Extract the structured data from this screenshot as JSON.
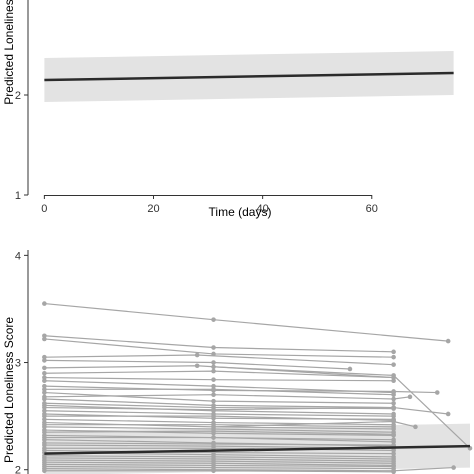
{
  "chart_data": [
    {
      "type": "line",
      "title": "",
      "xlabel": "Time (days)",
      "ylabel": "Predicted Loneliness",
      "xlim": [
        -3,
        78
      ],
      "ylim": [
        1,
        2.95
      ],
      "x_ticks": [
        0,
        20,
        40,
        60
      ],
      "x_tick_labels": [
        "0",
        "20",
        "40",
        "60"
      ],
      "y_ticks": [
        1,
        2
      ],
      "y_tick_labels": [
        "1",
        "2"
      ],
      "grid": false,
      "legend": "none",
      "colors": {
        "line": "#2b2b2b",
        "ribbon": "#e3e3e3",
        "axis": "#333333"
      },
      "series": [
        {
          "x": [
            0,
            75
          ],
          "y": [
            2.15,
            2.22
          ],
          "ci_lower": [
            1.93,
            2.0
          ],
          "ci_upper": [
            2.37,
            2.44
          ]
        }
      ]
    },
    {
      "type": "line",
      "title": "",
      "xlabel": "",
      "ylabel": "Predicted Loneliness Score",
      "xlim": [
        -3,
        78
      ],
      "ylim": [
        1.96,
        4.05
      ],
      "y_ticks": [
        2,
        3,
        4
      ],
      "y_tick_labels": [
        "2",
        "3",
        "4"
      ],
      "grid": false,
      "legend": "none",
      "colors": {
        "trajectory": "#a6a6a6",
        "line": "#2b2b2b",
        "ribbon": "#e3e3e3",
        "axis": "#333333"
      },
      "fit": {
        "x": [
          0,
          78
        ],
        "y": [
          2.15,
          2.22
        ],
        "ci_lower": [
          1.95,
          2.02
        ],
        "ci_upper": [
          2.36,
          2.43
        ]
      },
      "trajectories": [
        {
          "x": [
            0,
            31,
            74
          ],
          "y": [
            3.55,
            3.4,
            3.2
          ]
        },
        {
          "x": [
            0,
            31,
            64
          ],
          "y": [
            3.25,
            3.14,
            3.1
          ]
        },
        {
          "x": [
            0,
            31,
            64
          ],
          "y": [
            3.22,
            3.08,
            3.05
          ]
        },
        {
          "x": [
            0,
            28,
            64
          ],
          "y": [
            3.05,
            3.07,
            2.98
          ]
        },
        {
          "x": [
            0,
            31,
            56
          ],
          "y": [
            3.02,
            3.0,
            2.94
          ]
        },
        {
          "x": [
            0,
            28,
            64
          ],
          "y": [
            2.95,
            2.97,
            2.86
          ]
        },
        {
          "x": [
            0,
            31,
            64
          ],
          "y": [
            2.9,
            2.92,
            2.86
          ]
        },
        {
          "x": [
            0,
            31,
            64
          ],
          "y": [
            2.86,
            2.84,
            2.83
          ]
        },
        {
          "x": [
            0,
            31,
            64
          ],
          "y": [
            2.83,
            2.78,
            2.72
          ]
        },
        {
          "x": [
            0,
            31,
            64,
            72
          ],
          "y": [
            2.78,
            2.74,
            2.73,
            2.72
          ]
        },
        {
          "x": [
            0,
            31,
            64
          ],
          "y": [
            2.75,
            2.75,
            2.7
          ]
        },
        {
          "x": [
            0,
            31,
            64
          ],
          "y": [
            2.72,
            2.64,
            2.62
          ]
        },
        {
          "x": [
            0,
            31,
            64,
            67
          ],
          "y": [
            2.68,
            2.7,
            2.66,
            2.68
          ]
        },
        {
          "x": [
            0,
            31,
            64
          ],
          "y": [
            2.66,
            2.6,
            2.58
          ]
        },
        {
          "x": [
            0,
            31,
            64
          ],
          "y": [
            2.62,
            2.58,
            2.57
          ]
        },
        {
          "x": [
            0,
            31,
            64
          ],
          "y": [
            2.6,
            2.55,
            2.52
          ]
        },
        {
          "x": [
            0,
            31,
            64,
            74
          ],
          "y": [
            2.58,
            2.56,
            2.58,
            2.52
          ]
        },
        {
          "x": [
            0,
            31,
            64
          ],
          "y": [
            2.55,
            2.52,
            2.5
          ]
        },
        {
          "x": [
            0,
            31,
            64
          ],
          "y": [
            2.52,
            2.48,
            2.47
          ]
        },
        {
          "x": [
            0,
            31,
            64
          ],
          "y": [
            2.5,
            2.5,
            2.46
          ]
        },
        {
          "x": [
            0,
            31,
            64
          ],
          "y": [
            2.47,
            2.44,
            2.42
          ]
        },
        {
          "x": [
            0,
            31,
            64
          ],
          "y": [
            2.44,
            2.4,
            2.38
          ]
        },
        {
          "x": [
            0,
            31,
            64
          ],
          "y": [
            2.42,
            2.42,
            2.4
          ]
        },
        {
          "x": [
            0,
            31,
            64
          ],
          "y": [
            2.4,
            2.38,
            2.35
          ]
        },
        {
          "x": [
            0,
            31,
            64
          ],
          "y": [
            2.37,
            2.34,
            2.32
          ]
        },
        {
          "x": [
            0,
            31,
            64
          ],
          "y": [
            2.35,
            2.36,
            2.33
          ]
        },
        {
          "x": [
            0,
            31,
            64
          ],
          "y": [
            2.32,
            2.3,
            2.28
          ]
        },
        {
          "x": [
            0,
            31,
            64
          ],
          "y": [
            2.3,
            2.3,
            2.26
          ]
        },
        {
          "x": [
            0,
            31,
            64
          ],
          "y": [
            2.28,
            2.25,
            2.22
          ]
        },
        {
          "x": [
            0,
            31,
            64
          ],
          "y": [
            2.25,
            2.24,
            2.23
          ]
        },
        {
          "x": [
            0,
            31,
            64
          ],
          "y": [
            2.23,
            2.22,
            2.2
          ]
        },
        {
          "x": [
            0,
            31,
            64
          ],
          "y": [
            2.2,
            2.2,
            2.18
          ]
        },
        {
          "x": [
            0,
            31,
            64
          ],
          "y": [
            2.18,
            2.16,
            2.15
          ]
        },
        {
          "x": [
            0,
            31,
            64
          ],
          "y": [
            2.16,
            2.14,
            2.12
          ]
        },
        {
          "x": [
            0,
            31,
            64
          ],
          "y": [
            2.13,
            2.12,
            2.1
          ]
        },
        {
          "x": [
            0,
            31,
            64
          ],
          "y": [
            2.11,
            2.1,
            2.08
          ]
        },
        {
          "x": [
            0,
            31,
            64
          ],
          "y": [
            2.09,
            2.08,
            2.06
          ]
        },
        {
          "x": [
            0,
            31,
            64
          ],
          "y": [
            2.07,
            2.06,
            2.04
          ]
        },
        {
          "x": [
            0,
            31,
            64
          ],
          "y": [
            2.05,
            2.04,
            2.03
          ]
        },
        {
          "x": [
            0,
            31,
            64
          ],
          "y": [
            2.03,
            2.02,
            2.01
          ]
        },
        {
          "x": [
            0,
            31,
            64,
            75
          ],
          "y": [
            2.01,
            2.0,
            1.99,
            2.02
          ]
        },
        {
          "x": [
            0,
            31,
            64
          ],
          "y": [
            1.99,
            1.99,
            1.98
          ]
        },
        {
          "x": [
            31,
            64,
            78
          ],
          "y": [
            2.96,
            2.88,
            2.2
          ]
        },
        {
          "x": [
            31,
            64,
            68
          ],
          "y": [
            2.4,
            2.45,
            2.4
          ]
        }
      ]
    }
  ]
}
